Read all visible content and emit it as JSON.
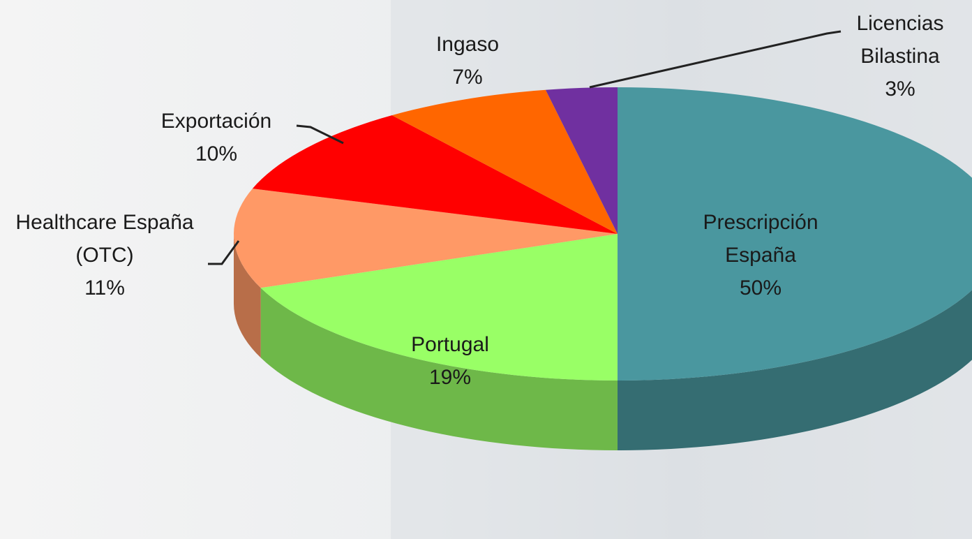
{
  "chart_data": {
    "type": "pie",
    "categories": [
      "Prescripción España",
      "Portugal",
      "Healthcare España (OTC)",
      "Exportación",
      "Ingaso",
      "Licencias Bilastina"
    ],
    "values": [
      50,
      19,
      11,
      10,
      7,
      3
    ],
    "value_labels": [
      "50%",
      "19%",
      "11%",
      "10%",
      "7%",
      "3%"
    ],
    "colors": [
      "#4a979f",
      "#99ff66",
      "#ff9966",
      "#ff0000",
      "#ff6600",
      "#7030a0"
    ]
  }
}
